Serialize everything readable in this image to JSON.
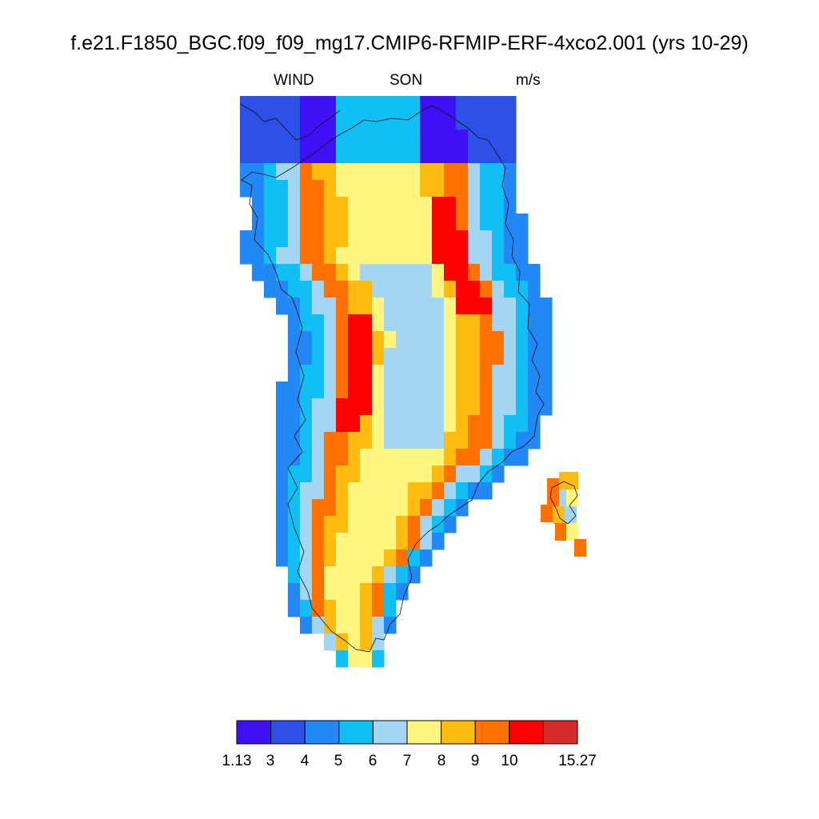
{
  "title": "f.e21.F1850_BGC.f09_f09_mg17.CMIP6-RFMIP-ERF-4xco2.001 (yrs 10-29)",
  "subtitle": {
    "variable": "WIND",
    "season": "SON",
    "units": "m/s"
  },
  "colorbar": {
    "labels": [
      "1.13",
      "3",
      "4",
      "5",
      "6",
      "7",
      "8",
      "9",
      "10",
      "15.27"
    ],
    "colors": [
      "#4010f5",
      "#2d50e6",
      "#2288f5",
      "#12bff5",
      "#a3d6f2",
      "#fff680",
      "#ffbb10",
      "#ff7200",
      "#ff0000",
      "#d82c2c"
    ]
  }
}
